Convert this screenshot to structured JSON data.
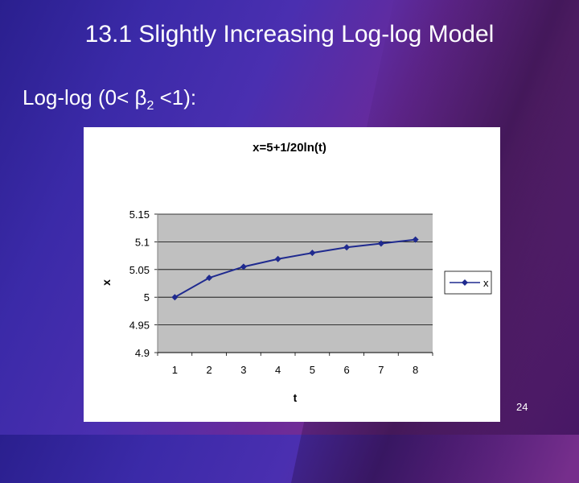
{
  "slide": {
    "title": "13.1 Slightly Increasing Log-log Model",
    "subtitle_prefix": "Log-log (0< β",
    "subtitle_sub": "2",
    "subtitle_suffix": " <1):",
    "page_number": "24"
  },
  "chart_data": {
    "type": "line",
    "title": "x=5+1/20ln(t)",
    "xlabel": "t",
    "ylabel": "x",
    "categories": [
      "1",
      "2",
      "3",
      "4",
      "5",
      "6",
      "7",
      "8"
    ],
    "series": [
      {
        "name": "x",
        "values": [
          5.0,
          5.035,
          5.055,
          5.069,
          5.08,
          5.09,
          5.097,
          5.104
        ]
      }
    ],
    "ylim": [
      4.9,
      5.15
    ],
    "yticks": [
      "4.9",
      "4.95",
      "5",
      "5.05",
      "5.1",
      "5.15"
    ],
    "grid": true,
    "legend": "right",
    "colors": {
      "series": "#1f2a8f",
      "plot_area": "#c0c0c0",
      "gridline": "#000000"
    }
  }
}
